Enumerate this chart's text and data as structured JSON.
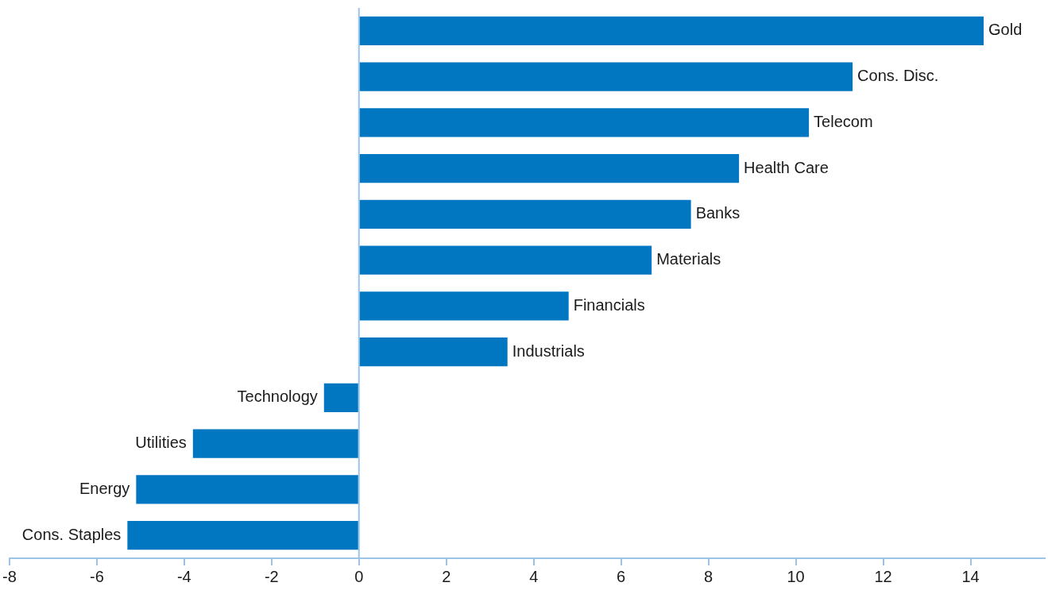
{
  "chart_data": {
    "type": "bar",
    "orientation": "horizontal",
    "categories": [
      "Gold",
      "Cons. Disc.",
      "Telecom",
      "Health Care",
      "Banks",
      "Materials",
      "Financials",
      "Industrials",
      "Technology",
      "Utilities",
      "Energy",
      "Cons. Staples"
    ],
    "values": [
      14.3,
      11.3,
      10.3,
      8.7,
      7.6,
      6.7,
      4.8,
      3.4,
      -0.8,
      -3.8,
      -5.1,
      -5.3
    ],
    "color": "#0077c0",
    "xlim": [
      -8,
      15.7
    ],
    "xticks": [
      -8,
      -6,
      -4,
      -2,
      0,
      2,
      4,
      6,
      8,
      10,
      12,
      14
    ],
    "ref_lines": [
      {
        "axis": "x",
        "value": 0,
        "color": "#9cc3ea"
      }
    ],
    "grid": false,
    "legend": false
  }
}
